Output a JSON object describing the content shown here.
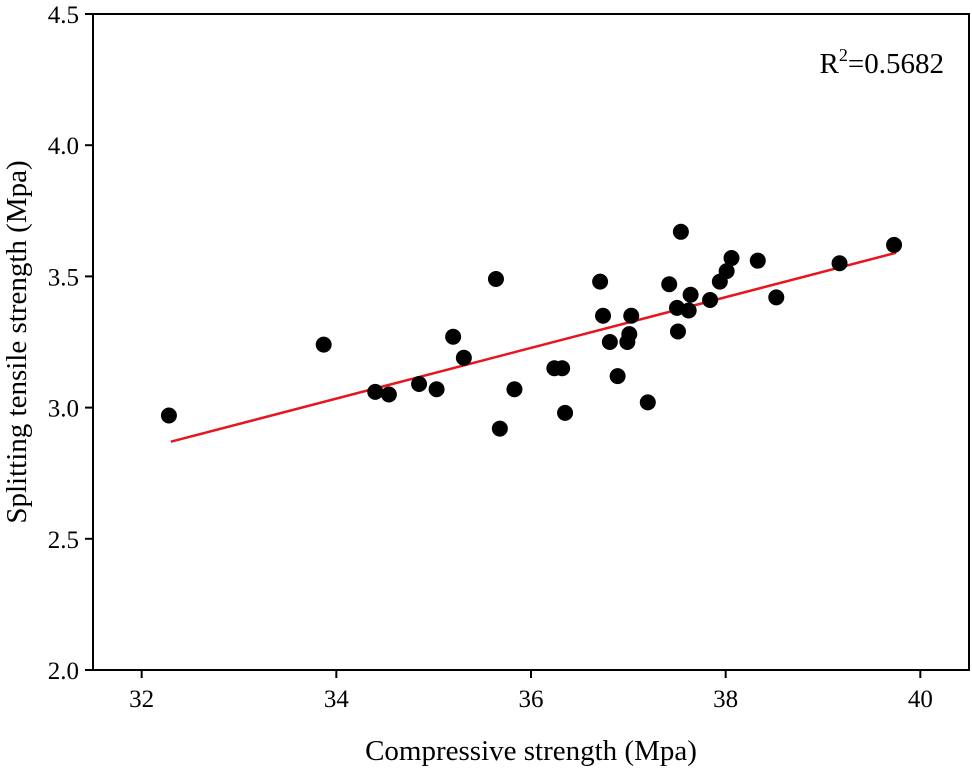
{
  "chart_data": {
    "type": "scatter",
    "title": "",
    "xlabel": "Compressive strength (Mpa)",
    "ylabel": "Splitting tensile strength (Mpa)",
    "xlim": [
      31.5,
      40.5
    ],
    "ylim": [
      2.0,
      4.5
    ],
    "xticks": [
      32,
      34,
      36,
      38,
      40
    ],
    "xtick_labels": [
      "32",
      "34",
      "36",
      "38",
      "40"
    ],
    "yticks": [
      2.0,
      2.5,
      3.0,
      3.5,
      4.0,
      4.5
    ],
    "ytick_labels": [
      "2.0",
      "2.5",
      "3.0",
      "3.5",
      "4.0",
      "4.5"
    ],
    "grid": false,
    "annotation": {
      "prefix": "R",
      "superscript": "2",
      "text": "=0.5682"
    },
    "fit_line": {
      "x": [
        32.3,
        39.75
      ],
      "y": [
        2.87,
        3.59
      ],
      "color": "#e8141e"
    },
    "marker_color": "#000000",
    "points": {
      "x": [
        32.28,
        33.87,
        34.4,
        34.54,
        34.85,
        35.03,
        35.2,
        35.31,
        35.64,
        35.68,
        35.83,
        36.24,
        36.32,
        36.35,
        36.71,
        36.74,
        36.81,
        36.89,
        36.99,
        37.01,
        37.03,
        37.2,
        37.42,
        37.5,
        37.51,
        37.54,
        37.62,
        37.64,
        37.84,
        37.94,
        38.01,
        38.06,
        38.33,
        38.52,
        39.17,
        39.73
      ],
      "y": [
        2.97,
        3.24,
        3.06,
        3.05,
        3.09,
        3.07,
        3.27,
        3.19,
        3.49,
        2.92,
        3.07,
        3.15,
        3.15,
        2.98,
        3.48,
        3.35,
        3.25,
        3.12,
        3.25,
        3.28,
        3.35,
        3.02,
        3.47,
        3.38,
        3.29,
        3.67,
        3.37,
        3.43,
        3.41,
        3.48,
        3.52,
        3.57,
        3.56,
        3.42,
        3.55,
        3.62
      ]
    }
  }
}
